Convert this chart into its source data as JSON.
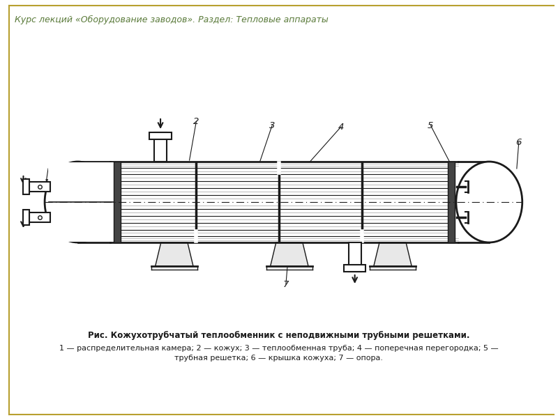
{
  "title_text": "Курс лекций «Оборудование заводов». Раздел: Тепловые аппараты",
  "title_color": "#5a7a3a",
  "title_fontsize": 9,
  "border_color": "#b8a030",
  "caption_bold": "Рис. Кожухотрубчатый теплообменник с неподвижными трубными решетками.",
  "caption_line1": "1 — распределительная камера; 2 — кожух; 3 — теплообменная труба; 4 — поперечная перегородка; 5 —",
  "caption_line2": "трубная решетка; 6 — крышка кожуха; 7 — опора.",
  "caption_fontsize": 8.5,
  "bg_color": "#ffffff",
  "dc": "#1a1a1a"
}
